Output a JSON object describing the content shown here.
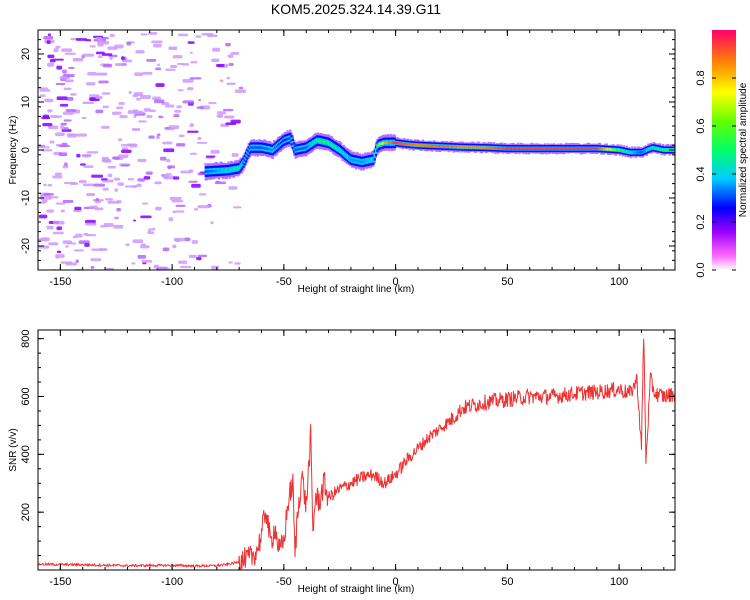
{
  "title": "KOM5.2025.324.14.39.G11",
  "chart_data": [
    {
      "type": "heatmap",
      "xlabel": "Height of straight line (km)",
      "ylabel": "Frequency (Hz)",
      "xlim": [
        -160,
        125
      ],
      "ylim": [
        -25,
        25
      ],
      "xticks": [
        -150,
        -100,
        -50,
        0,
        50,
        100
      ],
      "yticks": [
        -20,
        -10,
        0,
        10,
        20
      ],
      "colorbar": {
        "label": "Normalized spectral amplitude",
        "range": [
          0,
          1
        ],
        "ticks": [
          0.0,
          0.2,
          0.4,
          0.6,
          0.8
        ]
      },
      "ridge": {
        "x": [
          -85,
          -75,
          -70,
          -68,
          -65,
          -60,
          -55,
          -50,
          -47,
          -45,
          -40,
          -35,
          -30,
          -25,
          -20,
          -15,
          -10,
          -8,
          -5,
          0,
          5,
          10,
          20,
          30,
          40,
          50,
          60,
          70,
          80,
          90,
          100,
          105,
          110,
          115,
          120,
          125
        ],
        "y": [
          -4.5,
          -4.2,
          -3.8,
          -2.5,
          0.5,
          0.5,
          0,
          2,
          2.5,
          0,
          0.5,
          2,
          1.5,
          0,
          -2,
          -2.5,
          -2,
          1,
          1.5,
          1.5,
          1.2,
          1,
          0.8,
          0.6,
          0.5,
          0.3,
          0.3,
          0.3,
          0.3,
          0.3,
          0,
          -0.5,
          -0.5,
          0.5,
          0,
          0
        ],
        "amplitude": [
          0.3,
          0.4,
          0.5,
          0.3,
          0.3,
          0.3,
          0.35,
          0.25,
          0.3,
          0.3,
          0.3,
          0.5,
          0.55,
          0.45,
          0.35,
          0.35,
          0.4,
          0.6,
          0.8,
          0.95,
          0.9,
          0.85,
          0.9,
          0.85,
          0.85,
          0.95,
          0.95,
          0.95,
          0.95,
          0.95,
          0.55,
          0.4,
          0.3,
          0.45,
          0.5,
          0.6
        ]
      },
      "noise_region_x": [
        -160,
        -70
      ]
    },
    {
      "type": "line",
      "xlabel": "Height of straight line (km)",
      "ylabel": "SNR (v/v)",
      "xlim": [
        -160,
        125
      ],
      "ylim": [
        0,
        830
      ],
      "xticks": [
        -150,
        -100,
        -50,
        0,
        50,
        100
      ],
      "yticks": [
        200,
        400,
        600,
        800
      ],
      "series": [
        {
          "name": "SNR",
          "color": "#ee3333",
          "x": [
            -160,
            -140,
            -120,
            -100,
            -90,
            -80,
            -75,
            -70,
            -65,
            -62,
            -60,
            -58,
            -56,
            -54,
            -52,
            -50,
            -48,
            -46,
            -45,
            -44,
            -42,
            -40,
            -38,
            -37,
            -36,
            -34,
            -32,
            -30,
            -25,
            -20,
            -15,
            -10,
            -5,
            0,
            5,
            10,
            15,
            20,
            25,
            30,
            35,
            40,
            50,
            60,
            70,
            80,
            90,
            100,
            105,
            108,
            110,
            111,
            112,
            114,
            116,
            120,
            125
          ],
          "y": [
            20,
            18,
            15,
            16,
            14,
            15,
            20,
            28,
            40,
            70,
            120,
            215,
            90,
            150,
            60,
            100,
            240,
            300,
            50,
            180,
            330,
            220,
            460,
            120,
            250,
            240,
            300,
            250,
            280,
            300,
            320,
            330,
            300,
            330,
            380,
            420,
            460,
            490,
            520,
            560,
            570,
            580,
            590,
            600,
            600,
            610,
            615,
            625,
            610,
            660,
            420,
            820,
            380,
            660,
            610,
            600,
            610
          ]
        }
      ]
    }
  ],
  "colors": {
    "line": "#ee3333",
    "noise_purple": "#8800ff",
    "noise_light": "#cc99ff"
  }
}
